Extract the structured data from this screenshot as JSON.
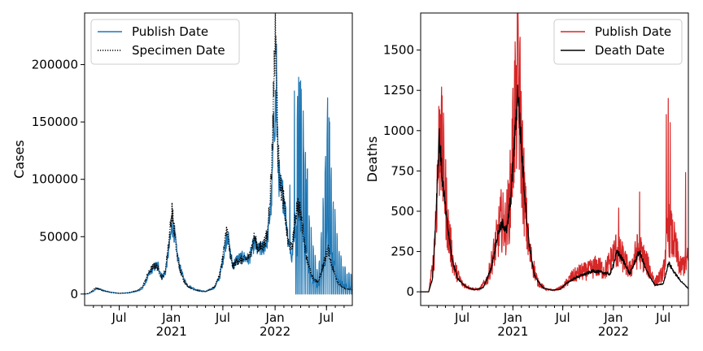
{
  "chart_data": [
    {
      "type": "line",
      "ylabel": "Cases",
      "xlabel": "",
      "x_range": [
        "2020-03-01",
        "2022-09-30"
      ],
      "ylim": [
        -10000,
        245000
      ],
      "y_ticks": [
        0,
        50000,
        100000,
        150000,
        200000
      ],
      "x_ticks": [
        {
          "date": "2020-07-01",
          "label": "Jul",
          "sublabel": ""
        },
        {
          "date": "2021-01-01",
          "label": "Jan",
          "sublabel": "2021"
        },
        {
          "date": "2021-07-01",
          "label": "Jul",
          "sublabel": ""
        },
        {
          "date": "2022-01-01",
          "label": "Jan",
          "sublabel": "2022"
        },
        {
          "date": "2022-07-01",
          "label": "Jul",
          "sublabel": ""
        }
      ],
      "legend_position": "top-left",
      "series": [
        {
          "name": "Publish Date",
          "color": "#1f77b4",
          "style": "solid",
          "spiky_after": "2022-03-15",
          "points": [
            [
              "2020-03-01",
              0
            ],
            [
              "2020-03-15",
              300
            ],
            [
              "2020-04-01",
              2500
            ],
            [
              "2020-04-12",
              4800
            ],
            [
              "2020-04-25",
              4200
            ],
            [
              "2020-05-10",
              2800
            ],
            [
              "2020-06-01",
              1500
            ],
            [
              "2020-07-01",
              600
            ],
            [
              "2020-08-01",
              1000
            ],
            [
              "2020-09-01",
              2500
            ],
            [
              "2020-09-20",
              4500
            ],
            [
              "2020-10-10",
              15000
            ],
            [
              "2020-10-25",
              22000
            ],
            [
              "2020-11-05",
              24000
            ],
            [
              "2020-11-15",
              25000
            ],
            [
              "2020-11-28",
              15000
            ],
            [
              "2020-12-10",
              18000
            ],
            [
              "2020-12-22",
              38000
            ],
            [
              "2021-01-04",
              60000
            ],
            [
              "2021-01-10",
              55000
            ],
            [
              "2021-01-20",
              35000
            ],
            [
              "2021-02-01",
              22000
            ],
            [
              "2021-02-15",
              12000
            ],
            [
              "2021-03-01",
              7000
            ],
            [
              "2021-04-01",
              3500
            ],
            [
              "2021-05-01",
              2200
            ],
            [
              "2021-06-01",
              5500
            ],
            [
              "2021-06-20",
              15000
            ],
            [
              "2021-07-01",
              30000
            ],
            [
              "2021-07-17",
              54000
            ],
            [
              "2021-07-25",
              38000
            ],
            [
              "2021-08-05",
              25000
            ],
            [
              "2021-08-20",
              30000
            ],
            [
              "2021-09-10",
              32000
            ],
            [
              "2021-10-01",
              30000
            ],
            [
              "2021-10-20",
              45000
            ],
            [
              "2021-11-01",
              38000
            ],
            [
              "2021-11-20",
              40000
            ],
            [
              "2021-12-05",
              48000
            ],
            [
              "2021-12-20",
              85000
            ],
            [
              "2021-12-29",
              155000
            ],
            [
              "2022-01-05",
              165000
            ],
            [
              "2022-01-12",
              110000
            ],
            [
              "2022-01-20",
              90000
            ],
            [
              "2022-02-01",
              85000
            ],
            [
              "2022-02-15",
              50000
            ],
            [
              "2022-03-01",
              30000
            ],
            [
              "2022-03-20",
              85000
            ],
            [
              "2022-04-01",
              95000
            ],
            [
              "2022-04-20",
              60000
            ],
            [
              "2022-05-10",
              25000
            ],
            [
              "2022-06-01",
              10000
            ],
            [
              "2022-06-20",
              40000
            ],
            [
              "2022-07-06",
              85000
            ],
            [
              "2022-07-20",
              50000
            ],
            [
              "2022-08-10",
              20000
            ],
            [
              "2022-09-01",
              12000
            ],
            [
              "2022-09-30",
              8000
            ]
          ],
          "peaks": [
            [
              "2022-01-06",
              218000
            ],
            [
              "2022-03-25",
              189000
            ],
            [
              "2022-04-01",
              186000
            ],
            [
              "2022-03-10",
              177000
            ],
            [
              "2022-07-05",
              171000
            ],
            [
              "2022-06-28",
              120000
            ],
            [
              "2022-07-12",
              150000
            ],
            [
              "2022-04-12",
              122000
            ],
            [
              "2022-04-20",
              100000
            ],
            [
              "2022-02-22",
              95000
            ]
          ]
        },
        {
          "name": "Specimen Date",
          "color": "#000000",
          "style": "dotted",
          "points": [
            [
              "2020-03-01",
              0
            ],
            [
              "2020-03-15",
              500
            ],
            [
              "2020-04-01",
              3500
            ],
            [
              "2020-04-10",
              5200
            ],
            [
              "2020-04-25",
              4000
            ],
            [
              "2020-05-10",
              2500
            ],
            [
              "2020-06-01",
              1300
            ],
            [
              "2020-07-01",
              600
            ],
            [
              "2020-08-01",
              1000
            ],
            [
              "2020-09-01",
              3000
            ],
            [
              "2020-09-20",
              6000
            ],
            [
              "2020-10-10",
              17000
            ],
            [
              "2020-10-25",
              23000
            ],
            [
              "2020-11-05",
              25000
            ],
            [
              "2020-11-15",
              22000
            ],
            [
              "2020-11-28",
              14000
            ],
            [
              "2020-12-10",
              20000
            ],
            [
              "2020-12-22",
              45000
            ],
            [
              "2021-01-03",
              73000
            ],
            [
              "2021-01-10",
              58000
            ],
            [
              "2021-01-20",
              35000
            ],
            [
              "2021-02-01",
              20000
            ],
            [
              "2021-02-15",
              11000
            ],
            [
              "2021-03-01",
              6000
            ],
            [
              "2021-04-01",
              3000
            ],
            [
              "2021-05-01",
              2000
            ],
            [
              "2021-06-01",
              6000
            ],
            [
              "2021-06-20",
              17000
            ],
            [
              "2021-07-01",
              33000
            ],
            [
              "2021-07-15",
              58000
            ],
            [
              "2021-07-25",
              37000
            ],
            [
              "2021-08-05",
              24000
            ],
            [
              "2021-08-20",
              29000
            ],
            [
              "2021-09-10",
              30000
            ],
            [
              "2021-10-01",
              32000
            ],
            [
              "2021-10-20",
              50000
            ],
            [
              "2021-11-01",
              40000
            ],
            [
              "2021-11-20",
              42000
            ],
            [
              "2021-12-05",
              52000
            ],
            [
              "2021-12-20",
              110000
            ],
            [
              "2021-12-29",
              200000
            ],
            [
              "2022-01-03",
              235000
            ],
            [
              "2022-01-10",
              130000
            ],
            [
              "2022-01-20",
              95000
            ],
            [
              "2022-02-01",
              80000
            ],
            [
              "2022-02-15",
              45000
            ],
            [
              "2022-03-01",
              40000
            ],
            [
              "2022-03-20",
              80000
            ],
            [
              "2022-04-01",
              70000
            ],
            [
              "2022-04-20",
              35000
            ],
            [
              "2022-05-10",
              15000
            ],
            [
              "2022-06-01",
              10000
            ],
            [
              "2022-06-20",
              25000
            ],
            [
              "2022-07-06",
              40000
            ],
            [
              "2022-07-20",
              25000
            ],
            [
              "2022-08-10",
              10000
            ],
            [
              "2022-09-01",
              5000
            ],
            [
              "2022-09-30",
              4000
            ]
          ]
        }
      ]
    },
    {
      "type": "line",
      "ylabel": "Deaths",
      "xlabel": "",
      "x_range": [
        "2020-02-01",
        "2022-09-30"
      ],
      "ylim": [
        -85,
        1730
      ],
      "y_ticks": [
        0,
        250,
        500,
        750,
        1000,
        1250,
        1500
      ],
      "x_ticks": [
        {
          "date": "2020-07-01",
          "label": "Jul",
          "sublabel": ""
        },
        {
          "date": "2021-01-01",
          "label": "Jan",
          "sublabel": "2021"
        },
        {
          "date": "2021-07-01",
          "label": "Jul",
          "sublabel": ""
        },
        {
          "date": "2022-01-01",
          "label": "Jan",
          "sublabel": "2022"
        },
        {
          "date": "2022-07-01",
          "label": "Jul",
          "sublabel": ""
        }
      ],
      "legend_position": "top-right",
      "series": [
        {
          "name": "Publish Date",
          "color": "#d62728",
          "style": "solid",
          "amplitude": 0.45,
          "points": [
            [
              "2020-03-01",
              0
            ],
            [
              "2020-03-20",
              200
            ],
            [
              "2020-04-05",
              800
            ],
            [
              "2020-04-10",
              1000
            ],
            [
              "2020-04-25",
              750
            ],
            [
              "2020-05-10",
              400
            ],
            [
              "2020-06-01",
              150
            ],
            [
              "2020-07-01",
              50
            ],
            [
              "2020-08-01",
              20
            ],
            [
              "2020-09-01",
              15
            ],
            [
              "2020-10-01",
              80
            ],
            [
              "2020-11-01",
              300
            ],
            [
              "2020-11-20",
              450
            ],
            [
              "2020-12-05",
              400
            ],
            [
              "2020-12-20",
              550
            ],
            [
              "2021-01-10",
              1200
            ],
            [
              "2021-01-20",
              1300
            ],
            [
              "2021-02-01",
              900
            ],
            [
              "2021-02-15",
              500
            ],
            [
              "2021-03-01",
              250
            ],
            [
              "2021-04-01",
              60
            ],
            [
              "2021-05-01",
              15
            ],
            [
              "2021-06-01",
              10
            ],
            [
              "2021-07-01",
              30
            ],
            [
              "2021-08-01",
              90
            ],
            [
              "2021-09-01",
              120
            ],
            [
              "2021-10-01",
              130
            ],
            [
              "2021-11-01",
              160
            ],
            [
              "2021-12-01",
              130
            ],
            [
              "2022-01-10",
              260
            ],
            [
              "2022-02-01",
              220
            ],
            [
              "2022-03-01",
              130
            ],
            [
              "2022-04-01",
              270
            ],
            [
              "2022-05-01",
              180
            ],
            [
              "2022-06-01",
              60
            ],
            [
              "2022-07-01",
              120
            ],
            [
              "2022-07-20",
              400
            ],
            [
              "2022-08-10",
              300
            ],
            [
              "2022-09-01",
              150
            ],
            [
              "2022-09-30",
              200
            ]
          ],
          "peaks": [
            [
              "2021-01-20",
              1660
            ],
            [
              "2021-01-27",
              1580
            ],
            [
              "2021-01-13",
              1400
            ],
            [
              "2020-04-13",
              1100
            ],
            [
              "2022-07-19",
              1200
            ],
            [
              "2022-07-12",
              1100
            ],
            [
              "2022-07-26",
              1050
            ],
            [
              "2022-09-20",
              740
            ],
            [
              "2022-04-06",
              620
            ],
            [
              "2022-01-20",
              520
            ]
          ]
        },
        {
          "name": "Death Date",
          "color": "#000000",
          "style": "solid",
          "amplitude": 0.08,
          "points": [
            [
              "2020-03-01",
              0
            ],
            [
              "2020-03-15",
              80
            ],
            [
              "2020-03-28",
              500
            ],
            [
              "2020-04-08",
              980
            ],
            [
              "2020-04-20",
              700
            ],
            [
              "2020-05-05",
              450
            ],
            [
              "2020-05-25",
              200
            ],
            [
              "2020-06-15",
              80
            ],
            [
              "2020-07-15",
              30
            ],
            [
              "2020-08-15",
              12
            ],
            [
              "2020-09-15",
              25
            ],
            [
              "2020-10-15",
              150
            ],
            [
              "2020-11-10",
              380
            ],
            [
              "2020-11-25",
              420
            ],
            [
              "2020-12-10",
              380
            ],
            [
              "2020-12-25",
              600
            ],
            [
              "2021-01-19",
              1250
            ],
            [
              "2021-02-01",
              900
            ],
            [
              "2021-02-15",
              550
            ],
            [
              "2021-03-01",
              300
            ],
            [
              "2021-03-20",
              100
            ],
            [
              "2021-04-20",
              25
            ],
            [
              "2021-05-20",
              10
            ],
            [
              "2021-06-20",
              15
            ],
            [
              "2021-07-20",
              60
            ],
            [
              "2021-08-20",
              90
            ],
            [
              "2021-09-20",
              110
            ],
            [
              "2021-10-20",
              130
            ],
            [
              "2021-11-20",
              120
            ],
            [
              "2021-12-20",
              110
            ],
            [
              "2022-01-15",
              250
            ],
            [
              "2022-02-10",
              180
            ],
            [
              "2022-03-01",
              110
            ],
            [
              "2022-04-05",
              250
            ],
            [
              "2022-05-01",
              130
            ],
            [
              "2022-06-01",
              40
            ],
            [
              "2022-07-01",
              50
            ],
            [
              "2022-07-20",
              180
            ],
            [
              "2022-08-10",
              120
            ],
            [
              "2022-09-01",
              70
            ],
            [
              "2022-09-30",
              20
            ]
          ]
        }
      ]
    }
  ]
}
